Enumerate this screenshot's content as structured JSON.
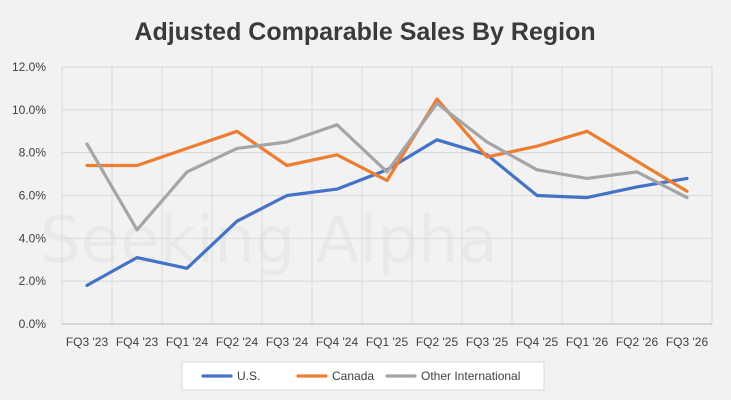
{
  "chart_data": {
    "type": "line",
    "title": "Adjusted Comparable Sales By Region",
    "watermark": "Seeking Alpha",
    "categories": [
      "FQ3 '23",
      "FQ4 '23",
      "FQ1 '24",
      "FQ2 '24",
      "FQ3 '24",
      "FQ4 '24",
      "FQ1 '25",
      "FQ2 '25",
      "FQ3 '25",
      "FQ4 '25",
      "FQ1 '26",
      "FQ2 '26",
      "FQ3 '26"
    ],
    "ylim": [
      0,
      12
    ],
    "yticks": [
      "0.0%",
      "2.0%",
      "4.0%",
      "6.0%",
      "8.0%",
      "10.0%",
      "12.0%"
    ],
    "grid": true,
    "legend": "bottom",
    "series": [
      {
        "name": "U.S.",
        "color": "#4472c4",
        "values": [
          1.8,
          3.1,
          2.6,
          4.8,
          6.0,
          6.3,
          7.2,
          8.6,
          7.9,
          6.0,
          5.9,
          6.4,
          6.8
        ]
      },
      {
        "name": "Canada",
        "color": "#ed7d31",
        "values": [
          7.4,
          7.4,
          8.2,
          9.0,
          7.4,
          7.9,
          6.7,
          10.5,
          7.8,
          8.3,
          9.0,
          7.6,
          6.2
        ]
      },
      {
        "name": "Other International",
        "color": "#a5a5a5",
        "values": [
          8.4,
          4.4,
          7.1,
          8.2,
          8.5,
          9.3,
          7.1,
          10.3,
          8.5,
          7.2,
          6.8,
          7.1,
          5.9
        ]
      }
    ]
  }
}
